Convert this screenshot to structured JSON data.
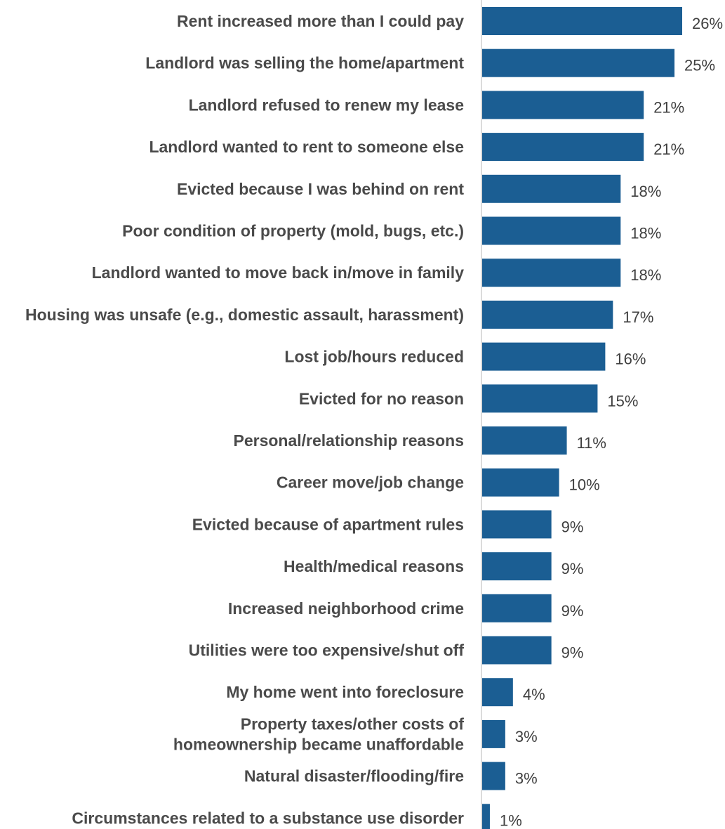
{
  "chart_data": {
    "type": "bar",
    "orientation": "horizontal",
    "categories": [
      [
        "Rent increased more than I could pay"
      ],
      [
        "Landlord was selling the home/apartment"
      ],
      [
        "Landlord refused to renew my lease"
      ],
      [
        "Landlord wanted to rent to someone else"
      ],
      [
        "Evicted because I was behind on rent"
      ],
      [
        "Poor condition of property (mold, bugs, etc.)"
      ],
      [
        "Landlord wanted to move back in/move in family"
      ],
      [
        "Housing was unsafe (e.g., domestic assault, harassment)"
      ],
      [
        "Lost job/hours reduced"
      ],
      [
        "Evicted for no reason"
      ],
      [
        "Personal/relationship reasons"
      ],
      [
        "Career move/job change"
      ],
      [
        "Evicted because of apartment rules"
      ],
      [
        "Health/medical reasons"
      ],
      [
        "Increased neighborhood crime"
      ],
      [
        "Utilities were too expensive/shut off"
      ],
      [
        "My home went into foreclosure"
      ],
      [
        "Property taxes/other costs of",
        "homeownership became unaffordable"
      ],
      [
        "Natural disaster/flooding/fire"
      ],
      [
        "Circumstances related to a substance use disorder"
      ]
    ],
    "values": [
      26,
      25,
      21,
      21,
      18,
      18,
      18,
      17,
      16,
      15,
      11,
      10,
      9,
      9,
      9,
      9,
      4,
      3,
      3,
      1
    ],
    "value_labels": [
      "26%",
      "25%",
      "21%",
      "21%",
      "18%",
      "18%",
      "18%",
      "17%",
      "16%",
      "15%",
      "11%",
      "10%",
      "9%",
      "9%",
      "9%",
      "9%",
      "4%",
      "3%",
      "3%",
      "1%"
    ],
    "unit": "%",
    "xlim": [
      0,
      26
    ],
    "grid": false,
    "legend": "none",
    "bar_color": "#1b5e93",
    "axis_color": "#cfcfcf",
    "label_color": "#4a4a4a",
    "value_color": "#3f3f3f"
  }
}
